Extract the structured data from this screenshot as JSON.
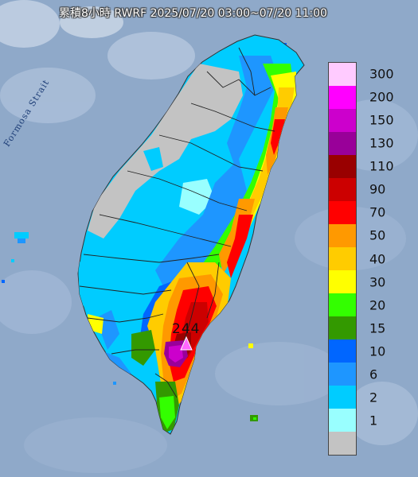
{
  "title": "累積8小時 RWRF 2025/07/20 03:00~07/20 11:00",
  "strait_label": "Formosa Strait",
  "max_value_label": "244",
  "legend": {
    "items": [
      {
        "label": "300",
        "color": "#ffcbff"
      },
      {
        "label": "200",
        "color": "#ff00ff"
      },
      {
        "label": "150",
        "color": "#cc00cc"
      },
      {
        "label": "130",
        "color": "#990099"
      },
      {
        "label": "110",
        "color": "#990000"
      },
      {
        "label": "90",
        "color": "#cc0000"
      },
      {
        "label": "70",
        "color": "#ff0000"
      },
      {
        "label": "50",
        "color": "#ff9900"
      },
      {
        "label": "40",
        "color": "#ffcc00"
      },
      {
        "label": "30",
        "color": "#ffff00"
      },
      {
        "label": "20",
        "color": "#33ff00"
      },
      {
        "label": "15",
        "color": "#339900"
      },
      {
        "label": "10",
        "color": "#0066ff"
      },
      {
        "label": "6",
        "color": "#1e96ff"
      },
      {
        "label": "2",
        "color": "#00ccff"
      },
      {
        "label": "1",
        "color": "#99ffff"
      },
      {
        "label": "",
        "color": "#c3c3c3"
      }
    ]
  }
}
